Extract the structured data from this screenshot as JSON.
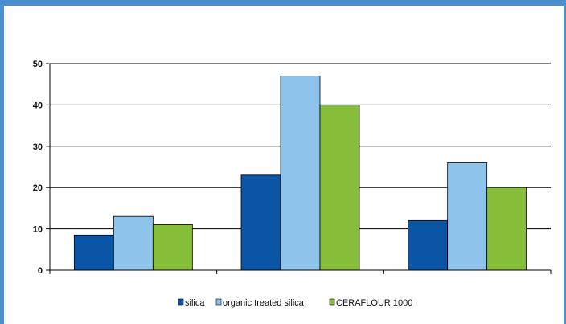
{
  "colors": {
    "frame": "#4a90d0",
    "series": [
      "#0a55a5",
      "#8ec3ec",
      "#86be3a"
    ],
    "grid": "#000000"
  },
  "chart_data": {
    "type": "bar",
    "categories": [
      "",
      "",
      ""
    ],
    "series": [
      {
        "name": "silica",
        "values": [
          8.5,
          23,
          12
        ]
      },
      {
        "name": "organic treated silica",
        "values": [
          13,
          47,
          26
        ]
      },
      {
        "name": "CERAFLOUR 1000",
        "values": [
          11,
          40,
          20
        ]
      }
    ],
    "ylim": [
      0,
      50
    ],
    "yticks": [
      "0",
      "10",
      "20",
      "30",
      "40",
      "50"
    ],
    "grid": true,
    "legend_position": "bottom"
  }
}
